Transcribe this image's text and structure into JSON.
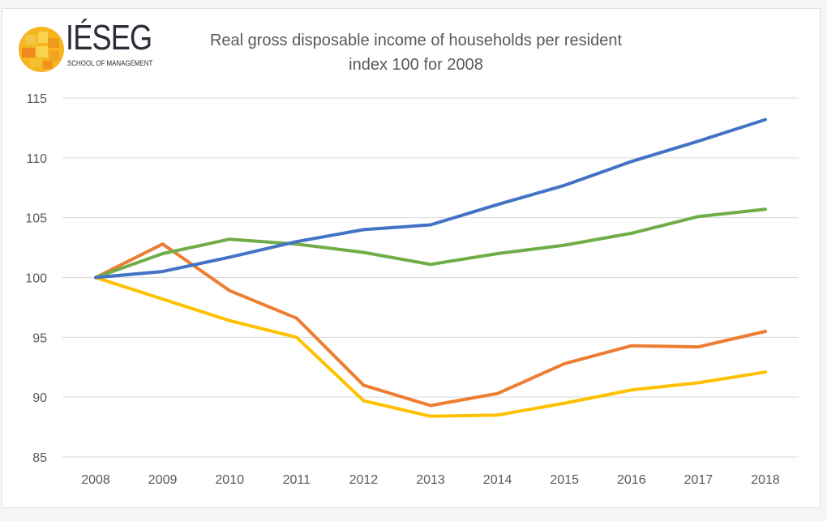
{
  "logo": {
    "name": "IÉSEG",
    "subtitle": "SCHOOL OF MANAGEMENT"
  },
  "chart_data": {
    "type": "line",
    "title": "Real gross disposable income of households per resident",
    "subtitle": "index 100 for 2008",
    "xlabel": "",
    "ylabel": "",
    "ylim": [
      85,
      115
    ],
    "yticks": [
      115,
      110,
      105,
      100,
      95,
      90,
      85
    ],
    "grid": true,
    "categories": [
      "2008",
      "2009",
      "2010",
      "2011",
      "2012",
      "2013",
      "2014",
      "2015",
      "2016",
      "2017",
      "2018"
    ],
    "series": [
      {
        "color": "#4472c4",
        "values": [
          100,
          100.5,
          101.7,
          103.0,
          104.0,
          104.4,
          106.1,
          107.7,
          109.7,
          111.4,
          113.2
        ]
      },
      {
        "color": "#70ad47",
        "values": [
          100,
          102.0,
          103.2,
          102.8,
          102.1,
          101.1,
          102.0,
          102.7,
          103.7,
          105.1,
          105.7
        ]
      },
      {
        "color": "#ed7d31",
        "values": [
          100,
          102.8,
          98.9,
          96.6,
          91.0,
          89.3,
          90.3,
          92.8,
          94.3,
          94.2,
          95.5
        ]
      },
      {
        "color": "#ffc000",
        "values": [
          100,
          98.2,
          96.4,
          95.0,
          89.7,
          88.4,
          88.5,
          89.5,
          90.6,
          91.2,
          92.1
        ]
      }
    ]
  }
}
